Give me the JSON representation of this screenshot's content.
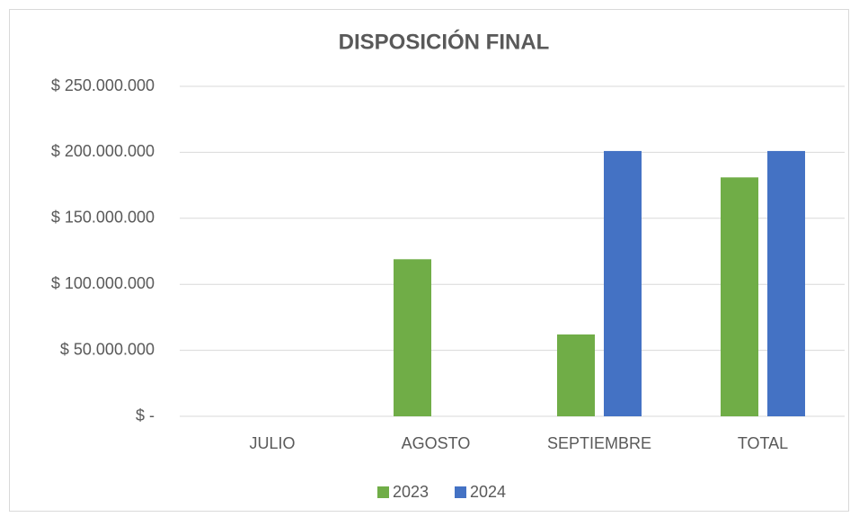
{
  "chart_data": {
    "type": "bar",
    "title": "DISPOSICIÓN FINAL",
    "categories": [
      "JULIO",
      "AGOSTO",
      "SEPTIEMBRE",
      "TOTAL"
    ],
    "series": [
      {
        "name": "2023",
        "color": "#70ad47",
        "values": [
          0,
          119000000,
          62000000,
          181000000
        ]
      },
      {
        "name": "2024",
        "color": "#4472c4",
        "values": [
          0,
          0,
          201000000,
          201000000
        ]
      }
    ],
    "ylim": [
      0,
      250000000
    ],
    "yticks": [
      {
        "value": 0,
        "label": "$ -"
      },
      {
        "value": 50000000,
        "label": "$ 50.000.000"
      },
      {
        "value": 100000000,
        "label": "$ 100.000.000"
      },
      {
        "value": 150000000,
        "label": "$ 150.000.000"
      },
      {
        "value": 200000000,
        "label": "$ 200.000.000"
      },
      {
        "value": 250000000,
        "label": "$ 250.000.000"
      }
    ],
    "grid": true,
    "legend": "bottom"
  }
}
